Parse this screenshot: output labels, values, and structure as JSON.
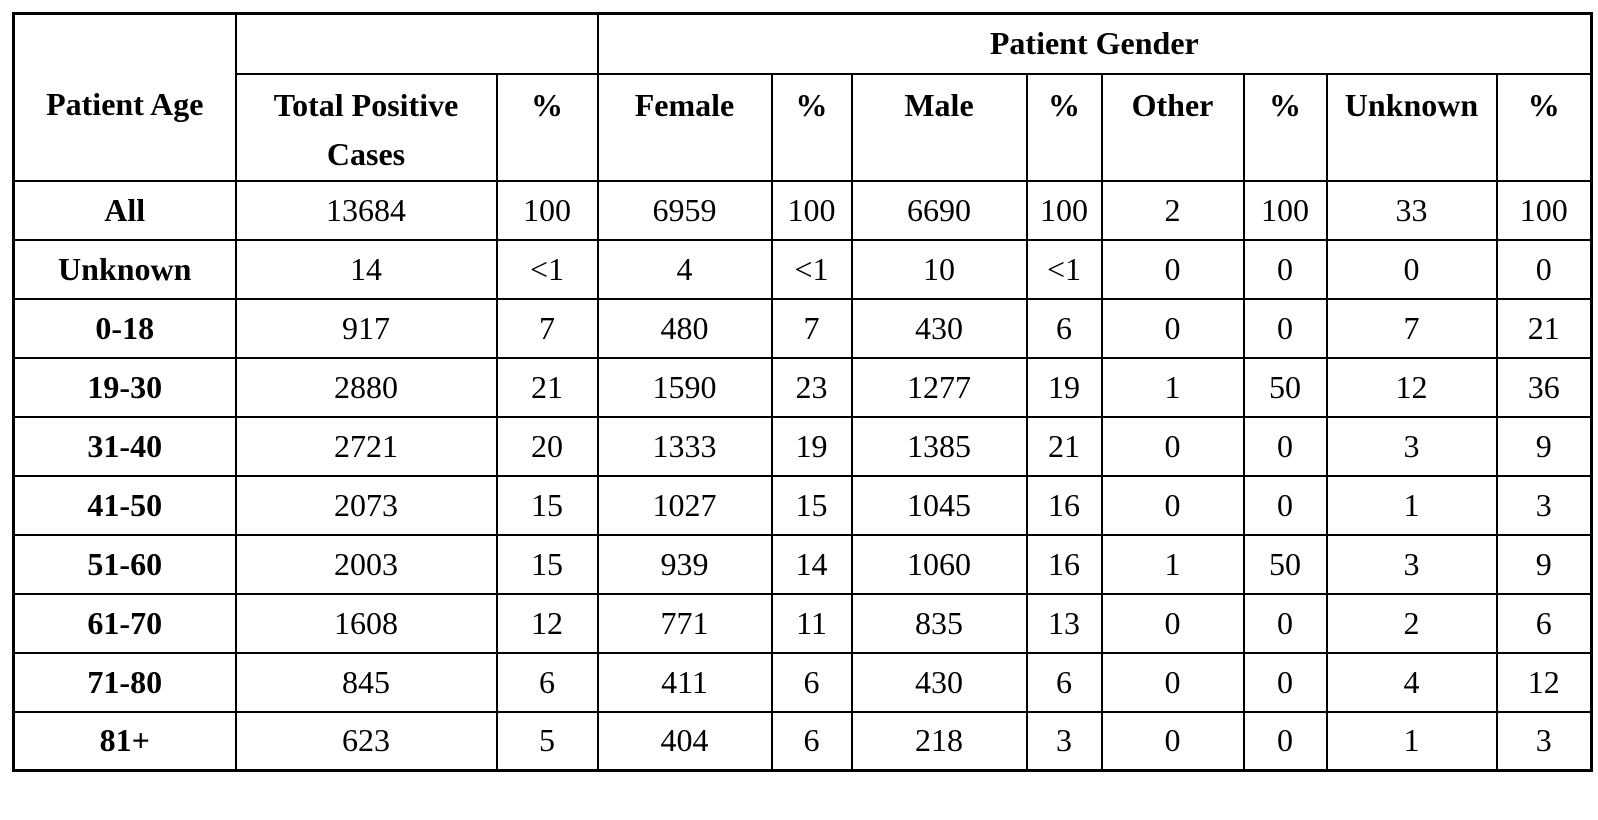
{
  "colors": {
    "border": "#000000",
    "background": "#ffffff",
    "text": "#000000"
  },
  "table": {
    "corner_header": "Patient Age",
    "gender_group_header": "Patient Gender",
    "column_headers": [
      "Total Positive Cases",
      "%",
      "Female",
      "%",
      "Male",
      "%",
      "Other",
      "%",
      "Unknown",
      "%"
    ],
    "rows": [
      {
        "age": "All",
        "cells": [
          "13684",
          "100",
          "6959",
          "100",
          "6690",
          "100",
          "2",
          "100",
          "33",
          "100"
        ]
      },
      {
        "age": "Unknown",
        "cells": [
          "14",
          "<1",
          "4",
          "<1",
          "10",
          "<1",
          "0",
          "0",
          "0",
          "0"
        ]
      },
      {
        "age": "0-18",
        "cells": [
          "917",
          "7",
          "480",
          "7",
          "430",
          "6",
          "0",
          "0",
          "7",
          "21"
        ]
      },
      {
        "age": "19-30",
        "cells": [
          "2880",
          "21",
          "1590",
          "23",
          "1277",
          "19",
          "1",
          "50",
          "12",
          "36"
        ]
      },
      {
        "age": "31-40",
        "cells": [
          "2721",
          "20",
          "1333",
          "19",
          "1385",
          "21",
          "0",
          "0",
          "3",
          "9"
        ]
      },
      {
        "age": "41-50",
        "cells": [
          "2073",
          "15",
          "1027",
          "15",
          "1045",
          "16",
          "0",
          "0",
          "1",
          "3"
        ]
      },
      {
        "age": "51-60",
        "cells": [
          "2003",
          "15",
          "939",
          "14",
          "1060",
          "16",
          "1",
          "50",
          "3",
          "9"
        ]
      },
      {
        "age": "61-70",
        "cells": [
          "1608",
          "12",
          "771",
          "11",
          "835",
          "13",
          "0",
          "0",
          "2",
          "6"
        ]
      },
      {
        "age": "71-80",
        "cells": [
          "845",
          "6",
          "411",
          "6",
          "430",
          "6",
          "0",
          "0",
          "4",
          "12"
        ]
      },
      {
        "age": "81+",
        "cells": [
          "623",
          "5",
          "404",
          "6",
          "218",
          "3",
          "0",
          "0",
          "1",
          "3"
        ]
      }
    ]
  }
}
